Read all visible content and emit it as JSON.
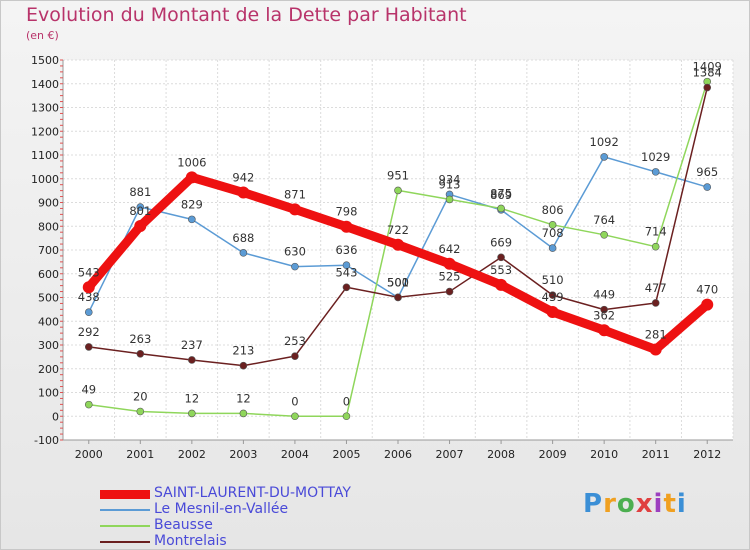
{
  "title": "Evolution du Montant de la Dette par Habitant",
  "subtitle": "(en €)",
  "brand": {
    "letters": [
      "P",
      "r",
      "o",
      "x",
      "i",
      "t",
      "i"
    ],
    "colors": [
      "#3b8fd6",
      "#f0a020",
      "#4caf50",
      "#e04040",
      "#9c3fbf",
      "#f0a020",
      "#3b8fd6"
    ]
  },
  "chart_data": {
    "type": "line",
    "title": "Evolution du Montant de la Dette par Habitant",
    "ylabel": "(en €)",
    "ylim": [
      -100,
      1500
    ],
    "yticks": [
      -100,
      0,
      100,
      200,
      300,
      400,
      500,
      600,
      700,
      800,
      900,
      1000,
      1100,
      1200,
      1300,
      1400,
      1500
    ],
    "x": [
      "2000",
      "2001",
      "2002",
      "2003",
      "2004",
      "2005",
      "2006",
      "2007",
      "2008",
      "2009",
      "2010",
      "2011",
      "2012"
    ],
    "grid": true,
    "legend_position": "bottom-left",
    "series": [
      {
        "name": "Le Mesnil-en-Vallée",
        "color": "#5b9bd5",
        "values": [
          438,
          881,
          829,
          688,
          630,
          636,
          500,
          934,
          869,
          708,
          1092,
          1029,
          965
        ]
      },
      {
        "name": "Beausse",
        "color": "#8fd65b",
        "values": [
          49,
          20,
          12,
          12,
          0,
          0,
          951,
          913,
          875,
          806,
          764,
          714,
          1409
        ]
      },
      {
        "name": "Montrelais",
        "color": "#6b2020",
        "values": [
          292,
          263,
          237,
          213,
          253,
          543,
          501,
          525,
          669,
          510,
          449,
          477,
          1384
        ]
      },
      {
        "name": "SAINT-LAURENT-DU-MOTTAY",
        "color": "#ee1111",
        "values": [
          543,
          801,
          1006,
          942,
          871,
          798,
          722,
          642,
          553,
          439,
          362,
          281,
          470
        ]
      }
    ]
  }
}
